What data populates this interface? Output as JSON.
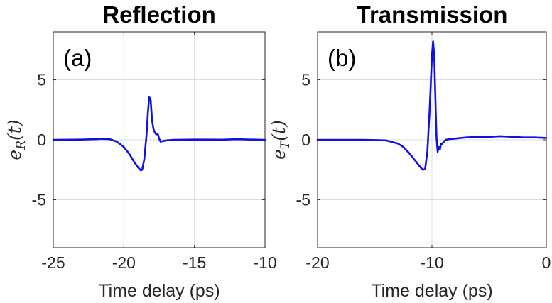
{
  "chart_data": [
    {
      "type": "line",
      "title": "Reflection",
      "panel_label": "(a)",
      "xlabel": "Time delay (ps)",
      "ylabel": "e_R(t)",
      "ylabel_main": "e",
      "ylabel_sub": "R",
      "ylabel_tail": "(t)",
      "xlim": [
        -25,
        -10
      ],
      "ylim": [
        -9,
        9
      ],
      "xticks": [
        -25,
        -20,
        -15,
        -10
      ],
      "xtick_labels": [
        "-25",
        "-20",
        "-15",
        "-10"
      ],
      "yticks": [
        -5,
        0,
        5
      ],
      "ytick_labels": [
        "-5",
        "0",
        "5"
      ],
      "grid": true,
      "color": "#1111e6",
      "x": [
        -25,
        -23,
        -22,
        -21.5,
        -21,
        -20.5,
        -20,
        -19.6,
        -19.3,
        -19.0,
        -18.8,
        -18.7,
        -18.55,
        -18.4,
        -18.3,
        -18.2,
        -18.1,
        -18.0,
        -17.9,
        -17.8,
        -17.7,
        -17.6,
        -17.5,
        -17.4,
        -17.2,
        -17.0,
        -16.5,
        -15,
        -13,
        -12,
        -11,
        -10
      ],
      "y": [
        0,
        0.02,
        0.05,
        0.08,
        0.05,
        -0.15,
        -0.6,
        -1.2,
        -1.8,
        -2.3,
        -2.55,
        -2.5,
        -1.6,
        0.3,
        2.2,
        3.6,
        3.3,
        1.6,
        0.9,
        0.6,
        0.45,
        0.5,
        0.1,
        -0.15,
        -0.1,
        -0.05,
        0,
        0.02,
        0.01,
        0.05,
        0.02,
        0
      ]
    },
    {
      "type": "line",
      "title": "Transmission",
      "panel_label": "(b)",
      "xlabel": "Time delay (ps)",
      "ylabel": "e_T(t)",
      "ylabel_main": "e",
      "ylabel_sub": "T",
      "ylabel_tail": "(t)",
      "xlim": [
        -20,
        0
      ],
      "ylim": [
        -9,
        9
      ],
      "xticks": [
        -20,
        -10,
        0
      ],
      "xtick_labels": [
        "-20",
        "-10",
        "0"
      ],
      "yticks": [
        -5,
        0,
        5
      ],
      "ytick_labels": [
        "-5",
        "0",
        "5"
      ],
      "grid": true,
      "color": "#1111e6",
      "x": [
        -20,
        -16,
        -14,
        -13,
        -12.5,
        -12,
        -11.5,
        -11,
        -10.8,
        -10.6,
        -10.4,
        -10.2,
        -10.0,
        -9.9,
        -9.8,
        -9.7,
        -9.6,
        -9.5,
        -9.4,
        -9.3,
        -9.2,
        -9.1,
        -9.0,
        -8.8,
        -8.5,
        -8.0,
        -7,
        -6,
        -5,
        -4,
        -2,
        -1,
        0
      ],
      "y": [
        0,
        0,
        -0.05,
        -0.3,
        -0.6,
        -1.1,
        -1.7,
        -2.3,
        -2.5,
        -2.45,
        -1.0,
        2.5,
        7.0,
        8.2,
        7.0,
        3.5,
        0.2,
        -1.0,
        -0.6,
        -0.8,
        -0.3,
        -0.35,
        -0.2,
        0,
        0.05,
        0.1,
        0.2,
        0.25,
        0.25,
        0.3,
        0.2,
        0.2,
        0.15
      ]
    }
  ]
}
